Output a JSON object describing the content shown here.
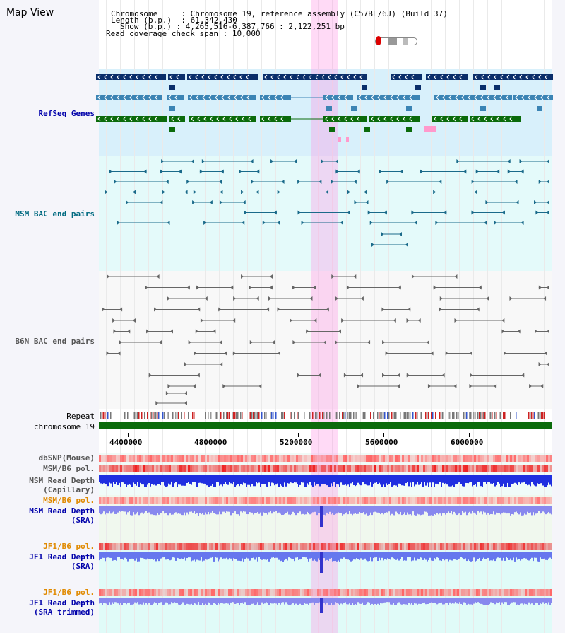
{
  "view_title": "Map View",
  "header": {
    "chromosome_key": "Chromosome",
    "chromosome_value": "Chromosome 19, reference assembly (C57BL/6J) (Build 37)",
    "length_key": "Length (b.p.)",
    "length_value": "61,342,430",
    "show_key": "Show (b.p.)",
    "show_value": "4,265,516-6,387,766 : 2,122,251 bp",
    "span_key": "Read coverage check span",
    "span_value": "10,000"
  },
  "tracks": {
    "refseq": "RefSeq Genes",
    "msm_bac": "MSM BAC end pairs",
    "b6n_bac": "B6N BAC end pairs",
    "repeat": "Repeat",
    "chromosome": "chromosome 19",
    "dbsnp": "dbSNP(Mouse)",
    "msm_pol": "MSM/B6 pol.",
    "msm_depth_cap_1": "MSM Read Depth",
    "msm_depth_cap_2": "(Capillary)",
    "msm_pol_sra": "MSM/B6 pol.",
    "msm_depth_sra_1": "MSM Read Depth",
    "msm_depth_sra_2": "(SRA)",
    "jf1_pol_1": "JF1/B6 pol.",
    "jf1_depth_sra_1": "JF1 Read Depth",
    "jf1_depth_sra_2": "(SRA)",
    "jf1_pol_2": "JF1/B6 pol.",
    "jf1_depth_trim_1": "JF1 Read Depth",
    "jf1_depth_trim_2": "(SRA trimmed)"
  },
  "axis": {
    "ticks": [
      {
        "label": "4400000",
        "value": 4400000
      },
      {
        "label": "4800000",
        "value": 4800000
      },
      {
        "label": "5200000",
        "value": 5200000
      },
      {
        "label": "5600000",
        "value": 5600000
      },
      {
        "label": "6000000",
        "value": 6000000
      }
    ],
    "start": 4265516,
    "end": 6387766
  },
  "colors": {
    "refseq_dark": "#0a2e6a",
    "refseq_mid": "#3b84b4",
    "refseq_green": "#0b6b0b",
    "msm_bac": "#1a6a8a",
    "b6n_bac": "#666666",
    "chromosome": "#0b6b0b",
    "label_blue": "#0000aa",
    "label_teal": "#006a80",
    "label_gray": "#555555",
    "label_orange": "#e08a00"
  }
}
